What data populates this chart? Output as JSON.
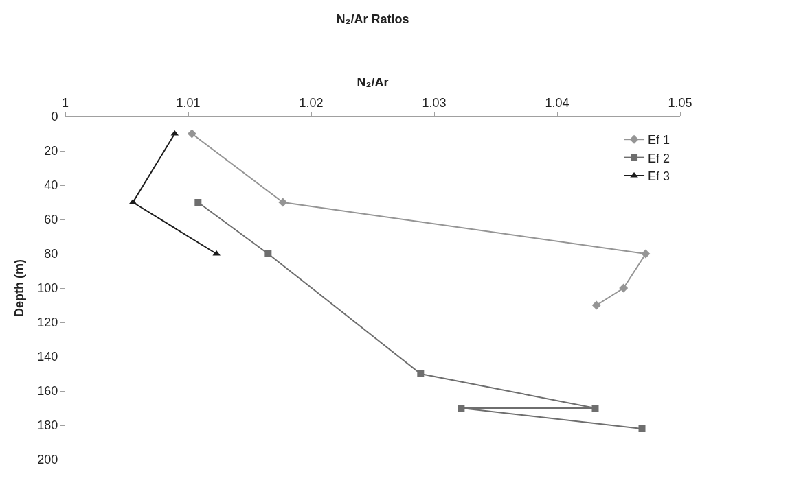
{
  "chart_data": {
    "type": "line",
    "title": "N₂/Ar Ratios",
    "xlabel": "N₂/Ar",
    "ylabel": "Depth (m)",
    "xlim": [
      1,
      1.05
    ],
    "xticks": [
      1,
      1.01,
      1.02,
      1.03,
      1.04,
      1.05
    ],
    "ylim": [
      200,
      0
    ],
    "yticks": [
      0,
      20,
      40,
      60,
      80,
      100,
      120,
      140,
      160,
      180,
      200
    ],
    "grid": false,
    "legend": "top right",
    "line_style": "solid",
    "series": [
      {
        "name": "Ef 1",
        "color": "#959595",
        "marker": "diamond",
        "x": [
          1.0103,
          1.0177,
          1.0472,
          1.0454,
          1.0432
        ],
        "values": [
          10,
          50,
          80,
          100,
          110
        ]
      },
      {
        "name": "Ef 2",
        "color": "#6e6e6e",
        "marker": "square",
        "x": [
          1.0108,
          1.0165,
          1.0289,
          1.0431,
          1.0322,
          1.0469
        ],
        "values": [
          50,
          80,
          150,
          170,
          170,
          182
        ]
      },
      {
        "name": "Ef 3",
        "color": "#1c1c1c",
        "marker": "triangle",
        "x": [
          1.0089,
          1.0055,
          1.0123
        ],
        "values": [
          10,
          50,
          80
        ]
      }
    ]
  }
}
